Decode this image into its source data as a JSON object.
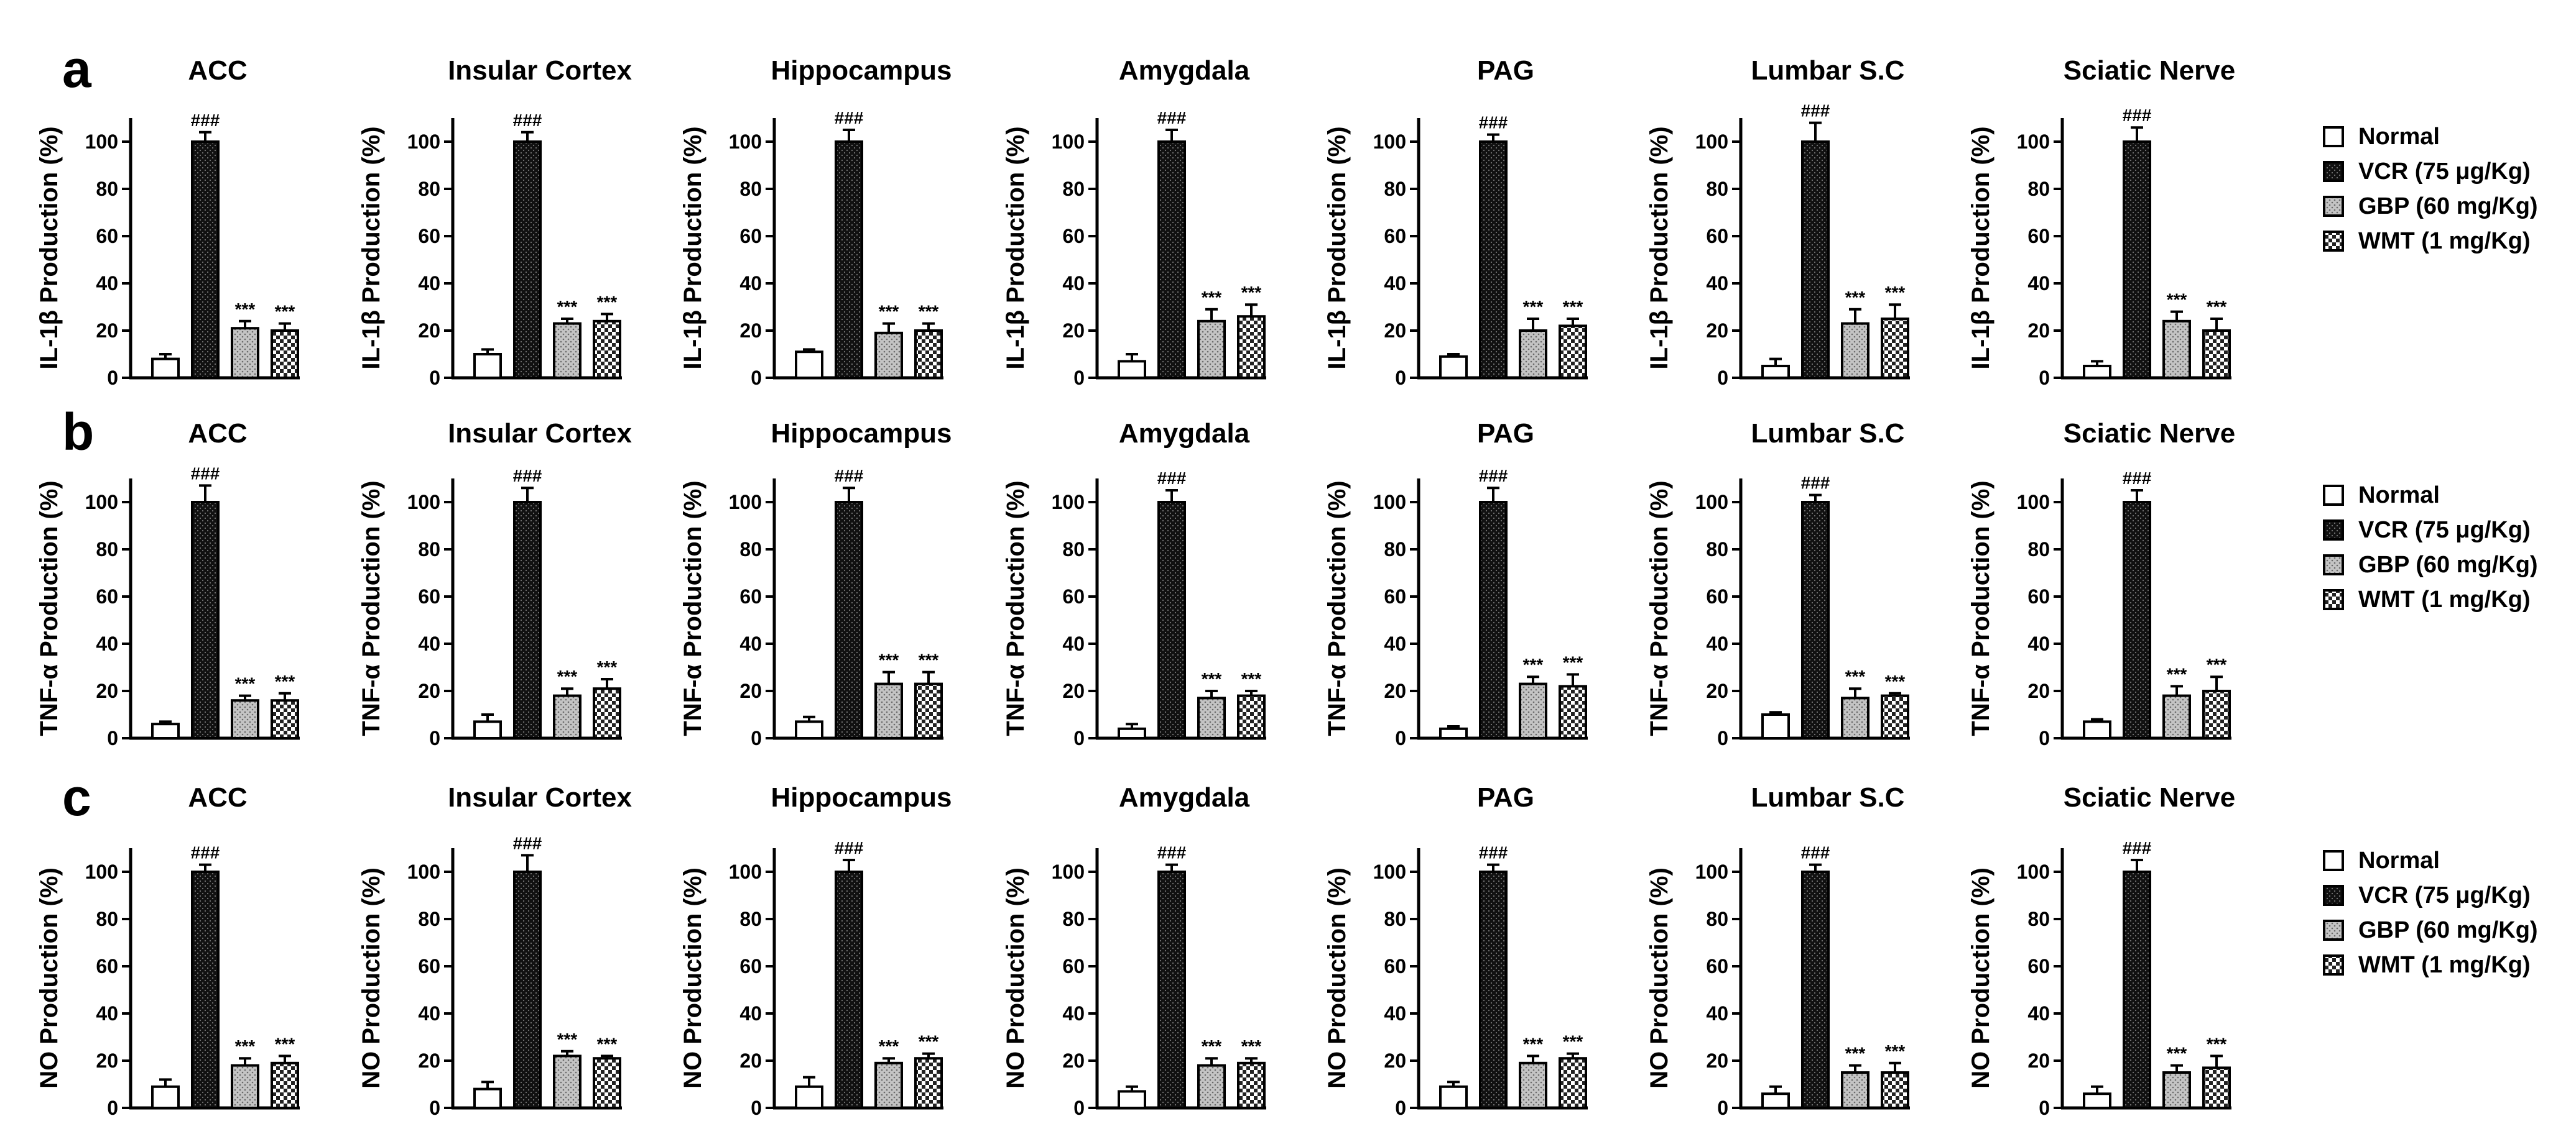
{
  "chart_data": [
    {
      "type": "bar",
      "panel": "a",
      "ylabel": "IL-1β Production (%)",
      "ylim": [
        0,
        110
      ],
      "yticks": [
        0,
        20,
        40,
        60,
        80,
        100
      ],
      "groups": [
        "Normal",
        "VCR (75 μg/Kg)",
        "GBP (60 mg/Kg)",
        "WMT (1 mg/Kg)"
      ],
      "charts": [
        {
          "title": "ACC",
          "values": [
            8,
            100,
            21,
            20
          ],
          "errors": [
            2,
            4,
            3,
            3
          ],
          "sig": [
            "",
            "###",
            "***",
            "***"
          ]
        },
        {
          "title": "Insular Cortex",
          "values": [
            10,
            100,
            23,
            24
          ],
          "errors": [
            2,
            4,
            2,
            3
          ],
          "sig": [
            "",
            "###",
            "***",
            "***"
          ]
        },
        {
          "title": "Hippocampus",
          "values": [
            11,
            100,
            19,
            20
          ],
          "errors": [
            1,
            5,
            4,
            3
          ],
          "sig": [
            "",
            "###",
            "***",
            "***"
          ]
        },
        {
          "title": "Amygdala",
          "values": [
            7,
            100,
            24,
            26
          ],
          "errors": [
            3,
            5,
            5,
            5
          ],
          "sig": [
            "",
            "###",
            "***",
            "***"
          ]
        },
        {
          "title": "PAG",
          "values": [
            9,
            100,
            20,
            22
          ],
          "errors": [
            1,
            3,
            5,
            3
          ],
          "sig": [
            "",
            "###",
            "***",
            "***"
          ]
        },
        {
          "title": "Lumbar S.C",
          "values": [
            5,
            100,
            23,
            25
          ],
          "errors": [
            3,
            8,
            6,
            6
          ],
          "sig": [
            "",
            "###",
            "***",
            "***"
          ]
        },
        {
          "title": "Sciatic Nerve",
          "values": [
            5,
            100,
            24,
            20
          ],
          "errors": [
            2,
            6,
            4,
            5
          ],
          "sig": [
            "",
            "###",
            "***",
            "***"
          ]
        }
      ]
    },
    {
      "type": "bar",
      "panel": "b",
      "ylabel": "TNF-α Production (%)",
      "ylim": [
        0,
        110
      ],
      "yticks": [
        0,
        20,
        40,
        60,
        80,
        100
      ],
      "groups": [
        "Normal",
        "VCR (75 μg/Kg)",
        "GBP (60 mg/Kg)",
        "WMT (1 mg/Kg)"
      ],
      "charts": [
        {
          "title": "ACC",
          "values": [
            6,
            100,
            16,
            16
          ],
          "errors": [
            1,
            7,
            2,
            3
          ],
          "sig": [
            "",
            "###",
            "***",
            "***"
          ]
        },
        {
          "title": "Insular Cortex",
          "values": [
            7,
            100,
            18,
            21
          ],
          "errors": [
            3,
            6,
            3,
            4
          ],
          "sig": [
            "",
            "###",
            "***",
            "***"
          ]
        },
        {
          "title": "Hippocampus",
          "values": [
            7,
            100,
            23,
            23
          ],
          "errors": [
            2,
            6,
            5,
            5
          ],
          "sig": [
            "",
            "###",
            "***",
            "***"
          ]
        },
        {
          "title": "Amygdala",
          "values": [
            4,
            100,
            17,
            18
          ],
          "errors": [
            2,
            5,
            3,
            2
          ],
          "sig": [
            "",
            "###",
            "***",
            "***"
          ]
        },
        {
          "title": "PAG",
          "values": [
            4,
            100,
            23,
            22
          ],
          "errors": [
            1,
            6,
            3,
            5
          ],
          "sig": [
            "",
            "###",
            "***",
            "***"
          ]
        },
        {
          "title": "Lumbar S.C",
          "values": [
            10,
            100,
            17,
            18
          ],
          "errors": [
            1,
            3,
            4,
            1
          ],
          "sig": [
            "",
            "###",
            "***",
            "***"
          ]
        },
        {
          "title": "Sciatic Nerve",
          "values": [
            7,
            100,
            18,
            20
          ],
          "errors": [
            1,
            5,
            4,
            6
          ],
          "sig": [
            "",
            "###",
            "***",
            "***"
          ]
        }
      ]
    },
    {
      "type": "bar",
      "panel": "c",
      "ylabel": "NO Production (%)",
      "ylim": [
        0,
        110
      ],
      "yticks": [
        0,
        20,
        40,
        60,
        80,
        100
      ],
      "groups": [
        "Normal",
        "VCR (75 μg/Kg)",
        "GBP (60 mg/Kg)",
        "WMT (1 mg/Kg)"
      ],
      "charts": [
        {
          "title": "ACC",
          "values": [
            9,
            100,
            18,
            19
          ],
          "errors": [
            3,
            3,
            3,
            3
          ],
          "sig": [
            "",
            "###",
            "***",
            "***"
          ]
        },
        {
          "title": "Insular Cortex",
          "values": [
            8,
            100,
            22,
            21
          ],
          "errors": [
            3,
            7,
            2,
            1
          ],
          "sig": [
            "",
            "###",
            "***",
            "***"
          ]
        },
        {
          "title": "Hippocampus",
          "values": [
            9,
            100,
            19,
            21
          ],
          "errors": [
            4,
            5,
            2,
            2
          ],
          "sig": [
            "",
            "###",
            "***",
            "***"
          ]
        },
        {
          "title": "Amygdala",
          "values": [
            7,
            100,
            18,
            19
          ],
          "errors": [
            2,
            3,
            3,
            2
          ],
          "sig": [
            "",
            "###",
            "***",
            "***"
          ]
        },
        {
          "title": "PAG",
          "values": [
            9,
            100,
            19,
            21
          ],
          "errors": [
            2,
            3,
            3,
            2
          ],
          "sig": [
            "",
            "###",
            "***",
            "***"
          ]
        },
        {
          "title": "Lumbar S.C",
          "values": [
            6,
            100,
            15,
            15
          ],
          "errors": [
            3,
            3,
            3,
            4
          ],
          "sig": [
            "",
            "###",
            "***",
            "***"
          ]
        },
        {
          "title": "Sciatic Nerve",
          "values": [
            6,
            100,
            15,
            17
          ],
          "errors": [
            3,
            5,
            3,
            5
          ],
          "sig": [
            "",
            "###",
            "***",
            "***"
          ]
        }
      ]
    }
  ],
  "legend": {
    "items": [
      {
        "label": "Normal",
        "fill": "none"
      },
      {
        "label": "VCR (75 μg/Kg)",
        "fill": "dark"
      },
      {
        "label": "GBP (60 mg/Kg)",
        "fill": "light"
      },
      {
        "label": "WMT (1 mg/Kg)",
        "fill": "checker"
      }
    ]
  },
  "colors": {
    "ink": "#000000",
    "background": "#ffffff",
    "vcr_fill": "#111111",
    "gbp_fill": "#bdbdbd"
  }
}
